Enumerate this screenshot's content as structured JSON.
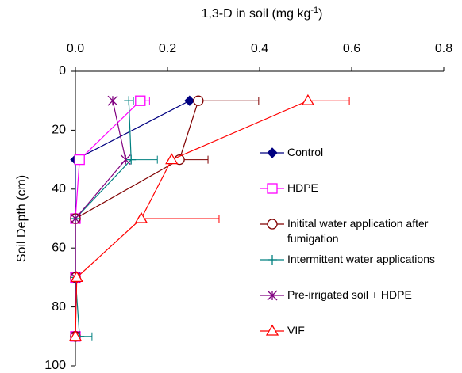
{
  "chart_data": {
    "type": "line",
    "xlabel": [
      "1,3-D in soil (mg kg",
      "-1",
      ")"
    ],
    "ylabel": "Soil Depth (cm)",
    "depth": [
      10,
      30,
      50,
      70,
      90
    ],
    "xlim": [
      0,
      0.8
    ],
    "xticks": [
      {
        "value": 0,
        "label": "0.0"
      },
      {
        "value": 0.2,
        "label": "0.2"
      },
      {
        "value": 0.4,
        "label": "0.4"
      },
      {
        "value": 0.6,
        "label": "0.6"
      },
      {
        "value": 0.8,
        "label": "0.8"
      }
    ],
    "ylim": [
      0,
      100
    ],
    "yticks": [
      0,
      20,
      40,
      60,
      80,
      100
    ],
    "y_inverted": true,
    "xaxis_position": "top",
    "series": [
      {
        "name": "Control",
        "color": "#000080",
        "marker": "diamond",
        "values": [
          0.248,
          0,
          0,
          0,
          0
        ],
        "errors": [
          0.01,
          null,
          null,
          null,
          null
        ]
      },
      {
        "name": "HDPE",
        "color": "#ff00ff",
        "marker": "square",
        "values": [
          0.141,
          0.009,
          0,
          0,
          0
        ],
        "errors": [
          0.02,
          null,
          null,
          null,
          null
        ]
      },
      {
        "name": "Initital water application after fumigation",
        "color": "#800000",
        "marker": "circle",
        "values": [
          0.267,
          0.226,
          0,
          0,
          0
        ],
        "errors": [
          0.131,
          0.062,
          null,
          null,
          null
        ]
      },
      {
        "name": "Intermittent water applications",
        "color": "#008080",
        "marker": "plus",
        "values": [
          0.116,
          0.121,
          0,
          0,
          0.009
        ],
        "errors": [
          0.01,
          0.057,
          null,
          null,
          0.027
        ]
      },
      {
        "name": "Pre-irrigated soil + HDPE",
        "color": "#800080",
        "marker": "star",
        "values": [
          0.081,
          0.109,
          0,
          0,
          0
        ],
        "errors": [
          null,
          null,
          null,
          null,
          null
        ]
      },
      {
        "name": "VIF",
        "color": "#ff0000",
        "marker": "triangle",
        "values": [
          0.505,
          0.209,
          0.143,
          0.003,
          0
        ],
        "errors": [
          0.09,
          null,
          0.169,
          null,
          null
        ]
      }
    ]
  }
}
